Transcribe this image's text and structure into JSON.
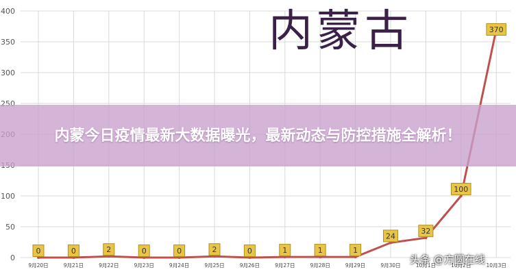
{
  "chart_data": {
    "type": "line",
    "title": "内蒙古",
    "categories": [
      "9月20日",
      "9月21日",
      "9月22日",
      "9月23日",
      "9月24日",
      "9月25日",
      "9月26日",
      "9月27日",
      "9月28日",
      "9月29日",
      "9月30日",
      "10月1日",
      "10月2日",
      "10月3日"
    ],
    "series": [
      {
        "values": [
          0,
          0,
          2,
          0,
          0,
          2,
          0,
          1,
          1,
          1,
          24,
          32,
          100,
          370
        ]
      }
    ],
    "ylim": [
      0,
      400
    ],
    "yticks": [
      0,
      50,
      100,
      150,
      200,
      250,
      300,
      350,
      400
    ],
    "grid": true,
    "xlabel": "",
    "ylabel": ""
  },
  "colors": {
    "line": "#c0504d",
    "label_fill": "#e8c547",
    "label_border": "#b08f1c",
    "grid": "#d9d9d9",
    "banner": "#c8a0cd"
  },
  "banner": {
    "text": "内蒙今日疫情最新大数据曝光，最新动态与防控措施全解析！"
  },
  "watermark": {
    "text": "头条 @方圆在线"
  }
}
